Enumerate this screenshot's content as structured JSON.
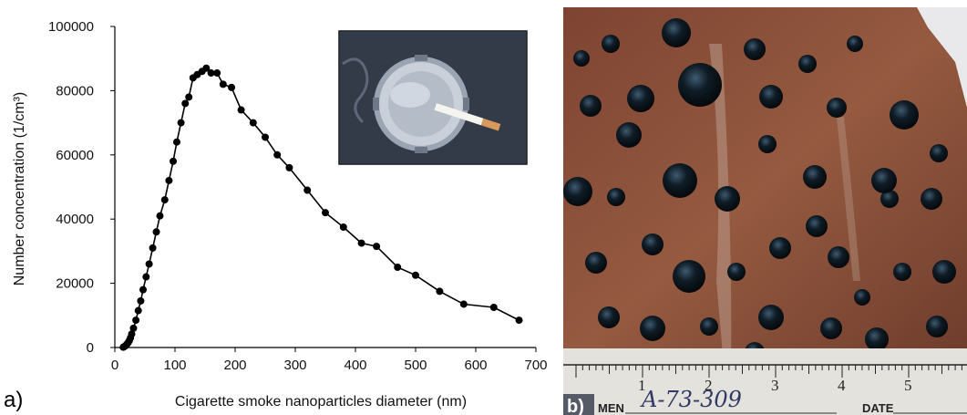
{
  "panel_a": {
    "letter": "a)",
    "chart_data": {
      "type": "line",
      "xlabel": "Cigarette smoke nanoparticles diameter (nm)",
      "ylabel": "Number concentration (1/cm³)",
      "xlim": [
        0,
        700
      ],
      "ylim": [
        0,
        100000
      ],
      "x_ticks": [
        0,
        100,
        200,
        300,
        400,
        500,
        600,
        700
      ],
      "y_ticks": [
        0,
        20000,
        40000,
        60000,
        80000,
        100000
      ],
      "grid": false,
      "marker": "filled-circle",
      "color": "#000000",
      "series": [
        {
          "x": [
            14,
            16,
            18,
            20,
            22,
            24,
            26,
            28,
            31,
            35,
            39,
            43,
            47,
            52,
            57,
            63,
            69,
            75,
            83,
            90,
            97,
            103,
            110,
            117,
            123,
            130,
            137,
            145,
            152,
            160,
            170,
            180,
            194,
            210,
            230,
            250,
            270,
            290,
            320,
            350,
            380,
            410,
            435,
            470,
            500,
            540,
            580,
            630,
            672
          ],
          "y": [
            100,
            300,
            600,
            1000,
            1500,
            2100,
            3000,
            4200,
            6000,
            8500,
            11500,
            14500,
            18000,
            22000,
            26000,
            31000,
            36000,
            41000,
            46000,
            52000,
            58000,
            64000,
            70000,
            76000,
            78000,
            84000,
            85000,
            86000,
            87000,
            85500,
            85500,
            82000,
            81000,
            74000,
            70000,
            65500,
            60000,
            56000,
            49000,
            42000,
            37500,
            32500,
            31500,
            25000,
            22500,
            17500,
            13500,
            12500,
            8500
          ]
        }
      ]
    }
  },
  "panel_b": {
    "letter": "b)",
    "ruler_numbers": [
      "1",
      "2",
      "3",
      "4",
      "5"
    ],
    "label_specimen": "MEN",
    "handwritten_code": "A-73-309",
    "label_date": "DATE",
    "colors": {
      "tissue": "#8a4a35",
      "nodule": "#0d1820",
      "background": "#e8e8ea"
    }
  }
}
